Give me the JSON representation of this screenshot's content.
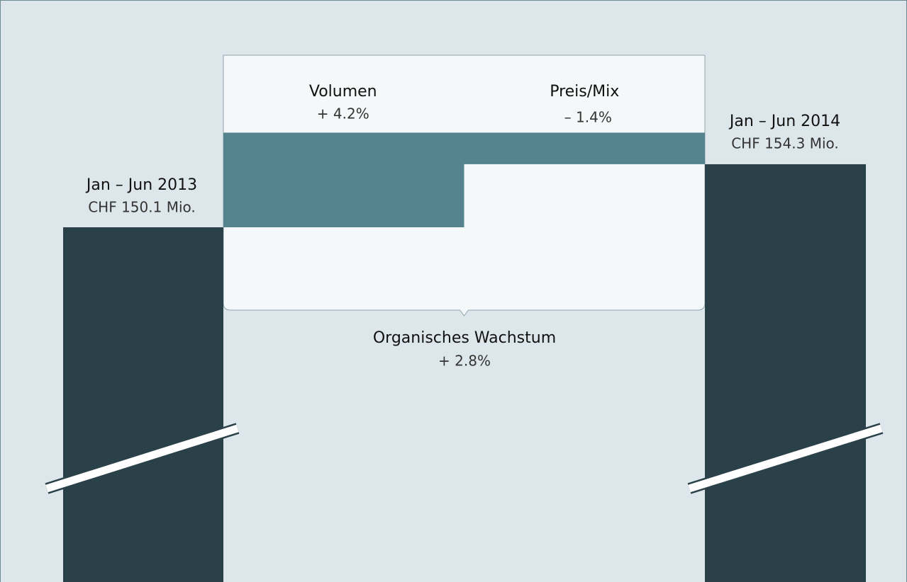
{
  "chart_data": {
    "type": "waterfall",
    "start": {
      "label": "Jan – Jun 2013",
      "value": 150.1,
      "value_label": "CHF 150.1 Mio."
    },
    "steps": [
      {
        "label": "Volumen",
        "value": 4.2,
        "value_label": "+ 4.2%"
      },
      {
        "label": "Preis/Mix",
        "value": -1.4,
        "value_label": "– 1.4%"
      }
    ],
    "end": {
      "label": "Jan – Jun 2014",
      "value": 154.3,
      "value_label": "CHF 154.3 Mio."
    },
    "total_change": {
      "label": "Organisches Wachstum",
      "value": 2.8,
      "value_label": "+ 2.8%"
    },
    "colors": {
      "total": "#2a414a",
      "step": "#55848f"
    }
  }
}
